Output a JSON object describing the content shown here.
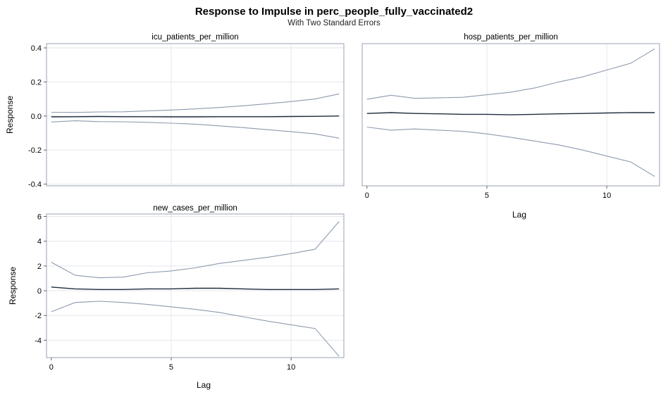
{
  "figure": {
    "title": "Response to Impulse in perc_people_fully_vaccinated2",
    "subtitle": "With Two Standard Errors"
  },
  "colors": {
    "response_line": "#1f2d3d",
    "band_line": "#8d9aad",
    "frame": "#9aa0b4",
    "grid": "#e4e6ec"
  },
  "chart_data": [
    {
      "type": "line",
      "title": "icu_patients_per_million",
      "xlabel": "",
      "ylabel": "Response",
      "x": [
        0,
        1,
        2,
        3,
        4,
        5,
        6,
        7,
        8,
        9,
        10,
        11,
        12
      ],
      "xlim": [
        -0.2,
        12.2
      ],
      "xticks": [],
      "ylim": [
        -0.41,
        0.425
      ],
      "yticks": [
        "0.4",
        "0.2",
        "0.0",
        "-0.2",
        "-0.4"
      ],
      "ytick_values": [
        0.4,
        0.2,
        0.0,
        -0.2,
        -0.4
      ],
      "grid": true,
      "series": [
        {
          "role": "upper",
          "values": [
            0.022,
            0.021,
            0.024,
            0.025,
            0.03,
            0.035,
            0.042,
            0.05,
            0.06,
            0.072,
            0.085,
            0.1,
            0.13
          ]
        },
        {
          "role": "response",
          "values": [
            -0.005,
            -0.004,
            -0.003,
            -0.004,
            -0.004,
            -0.005,
            -0.005,
            -0.004,
            -0.004,
            -0.004,
            -0.003,
            -0.002,
            0.0
          ]
        },
        {
          "role": "lower",
          "values": [
            -0.035,
            -0.028,
            -0.033,
            -0.034,
            -0.037,
            -0.042,
            -0.048,
            -0.058,
            -0.068,
            -0.08,
            -0.092,
            -0.105,
            -0.13
          ]
        }
      ]
    },
    {
      "type": "line",
      "title": "hosp_patients_per_million",
      "xlabel": "Lag",
      "ylabel": "",
      "x": [
        0,
        1,
        2,
        3,
        4,
        5,
        6,
        7,
        8,
        9,
        10,
        11,
        12
      ],
      "xlim": [
        -0.2,
        12.2
      ],
      "xticks": [
        "0",
        "5",
        "10"
      ],
      "xtick_values": [
        0,
        5,
        10
      ],
      "ylim": [
        -0.41,
        0.425
      ],
      "yticks": [],
      "grid": true,
      "series": [
        {
          "role": "upper",
          "values": [
            0.098,
            0.122,
            0.104,
            0.107,
            0.11,
            0.125,
            0.14,
            0.165,
            0.2,
            0.23,
            0.27,
            0.31,
            0.395
          ]
        },
        {
          "role": "response",
          "values": [
            0.015,
            0.02,
            0.015,
            0.013,
            0.01,
            0.01,
            0.007,
            0.01,
            0.013,
            0.015,
            0.018,
            0.02,
            0.02
          ]
        },
        {
          "role": "lower",
          "values": [
            -0.065,
            -0.083,
            -0.076,
            -0.083,
            -0.09,
            -0.105,
            -0.125,
            -0.147,
            -0.17,
            -0.2,
            -0.235,
            -0.27,
            -0.355
          ]
        }
      ]
    },
    {
      "type": "line",
      "title": "new_cases_per_million",
      "xlabel": "Lag",
      "ylabel": "Response",
      "x": [
        0,
        1,
        2,
        3,
        4,
        5,
        6,
        7,
        8,
        9,
        10,
        11,
        12
      ],
      "xlim": [
        -0.2,
        12.2
      ],
      "xticks": [
        "0",
        "5",
        "10"
      ],
      "xtick_values": [
        0,
        5,
        10
      ],
      "ylim": [
        -5.4,
        6.2
      ],
      "yticks": [
        "6",
        "4",
        "2",
        "0",
        "-2",
        "-4"
      ],
      "ytick_values": [
        6,
        4,
        2,
        0,
        -2,
        -4
      ],
      "grid": true,
      "series": [
        {
          "role": "upper",
          "values": [
            2.3,
            1.25,
            1.05,
            1.1,
            1.45,
            1.6,
            1.85,
            2.2,
            2.45,
            2.7,
            3.0,
            3.35,
            5.6
          ]
        },
        {
          "role": "response",
          "values": [
            0.3,
            0.15,
            0.1,
            0.1,
            0.15,
            0.15,
            0.2,
            0.2,
            0.15,
            0.1,
            0.1,
            0.1,
            0.15
          ]
        },
        {
          "role": "lower",
          "values": [
            -1.7,
            -0.95,
            -0.85,
            -0.95,
            -1.1,
            -1.3,
            -1.5,
            -1.75,
            -2.1,
            -2.45,
            -2.75,
            -3.05,
            -5.3
          ]
        }
      ]
    }
  ]
}
